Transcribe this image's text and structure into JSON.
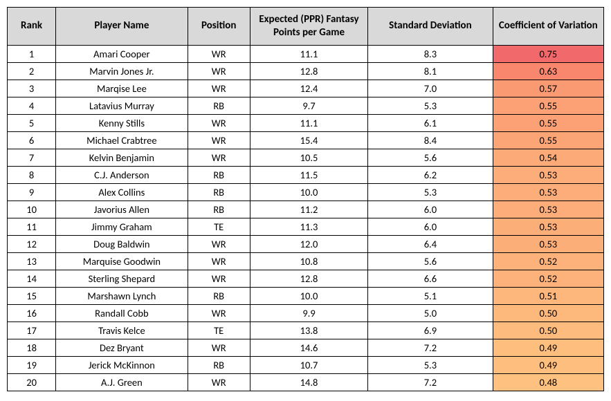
{
  "table": {
    "columns": [
      {
        "key": "rank",
        "label": "Rank",
        "class": "col-rank"
      },
      {
        "key": "player",
        "label": "Player Name",
        "class": "col-player"
      },
      {
        "key": "position",
        "label": "Position",
        "class": "col-pos"
      },
      {
        "key": "expected",
        "label": "Expected (PPR) Fantasy Points per Game",
        "class": "col-expected"
      },
      {
        "key": "stddev",
        "label": "Standard Deviation",
        "class": "col-stddev"
      },
      {
        "key": "cov",
        "label": "Coefficient of Variation",
        "class": "col-cov"
      }
    ],
    "rows": [
      {
        "rank": "1",
        "player": "Amari Cooper",
        "position": "WR",
        "expected": "11.1",
        "stddev": "8.3",
        "cov": "0.75",
        "cov_bg": "#f2696c"
      },
      {
        "rank": "2",
        "player": "Marvin Jones Jr.",
        "position": "WR",
        "expected": "12.8",
        "stddev": "8.1",
        "cov": "0.63",
        "cov_bg": "#f8876e"
      },
      {
        "rank": "3",
        "player": "Marqise Lee",
        "position": "WR",
        "expected": "12.4",
        "stddev": "7.0",
        "cov": "0.57",
        "cov_bg": "#fa9a72"
      },
      {
        "rank": "4",
        "player": "Latavius Murray",
        "position": "RB",
        "expected": "9.7",
        "stddev": "5.3",
        "cov": "0.55",
        "cov_bg": "#fba175"
      },
      {
        "rank": "5",
        "player": "Kenny Stills",
        "position": "WR",
        "expected": "11.1",
        "stddev": "6.1",
        "cov": "0.55",
        "cov_bg": "#fba175"
      },
      {
        "rank": "6",
        "player": "Michael Crabtree",
        "position": "WR",
        "expected": "15.4",
        "stddev": "8.4",
        "cov": "0.55",
        "cov_bg": "#fba476"
      },
      {
        "rank": "7",
        "player": "Kelvin Benjamin",
        "position": "WR",
        "expected": "10.5",
        "stddev": "5.6",
        "cov": "0.54",
        "cov_bg": "#fcab78"
      },
      {
        "rank": "8",
        "player": "C.J. Anderson",
        "position": "RB",
        "expected": "11.5",
        "stddev": "6.2",
        "cov": "0.53",
        "cov_bg": "#fcad79"
      },
      {
        "rank": "9",
        "player": "Alex Collins",
        "position": "RB",
        "expected": "10.0",
        "stddev": "5.3",
        "cov": "0.53",
        "cov_bg": "#fcad79"
      },
      {
        "rank": "10",
        "player": "Javorius Allen",
        "position": "RB",
        "expected": "11.2",
        "stddev": "6.0",
        "cov": "0.53",
        "cov_bg": "#fcad79"
      },
      {
        "rank": "11",
        "player": "Jimmy Graham",
        "position": "TE",
        "expected": "11.3",
        "stddev": "6.0",
        "cov": "0.53",
        "cov_bg": "#fcae79"
      },
      {
        "rank": "12",
        "player": "Doug Baldwin",
        "position": "WR",
        "expected": "12.0",
        "stddev": "6.4",
        "cov": "0.53",
        "cov_bg": "#fcae79"
      },
      {
        "rank": "13",
        "player": "Marquise Goodwin",
        "position": "WR",
        "expected": "10.8",
        "stddev": "5.6",
        "cov": "0.52",
        "cov_bg": "#fcb27a"
      },
      {
        "rank": "14",
        "player": "Sterling Shepard",
        "position": "WR",
        "expected": "12.8",
        "stddev": "6.6",
        "cov": "0.52",
        "cov_bg": "#fcb27a"
      },
      {
        "rank": "15",
        "player": "Marshawn Lynch",
        "position": "RB",
        "expected": "10.0",
        "stddev": "5.1",
        "cov": "0.51",
        "cov_bg": "#fdb67b"
      },
      {
        "rank": "16",
        "player": "Randall Cobb",
        "position": "WR",
        "expected": "9.9",
        "stddev": "5.0",
        "cov": "0.50",
        "cov_bg": "#fdb97c"
      },
      {
        "rank": "17",
        "player": "Travis Kelce",
        "position": "TE",
        "expected": "13.8",
        "stddev": "6.9",
        "cov": "0.50",
        "cov_bg": "#fdbb7d"
      },
      {
        "rank": "18",
        "player": "Dez Bryant",
        "position": "WR",
        "expected": "14.6",
        "stddev": "7.2",
        "cov": "0.49",
        "cov_bg": "#fdbe7e"
      },
      {
        "rank": "19",
        "player": "Jerick McKinnon",
        "position": "RB",
        "expected": "10.7",
        "stddev": "5.3",
        "cov": "0.49",
        "cov_bg": "#fdbe7e"
      },
      {
        "rank": "20",
        "player": "A.J. Green",
        "position": "WR",
        "expected": "14.8",
        "stddev": "7.2",
        "cov": "0.48",
        "cov_bg": "#fec17f"
      }
    ]
  }
}
